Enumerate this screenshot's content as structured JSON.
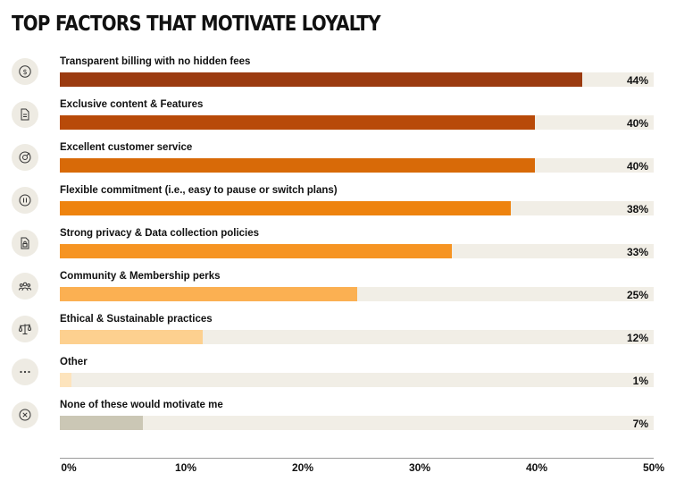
{
  "chart_data": {
    "type": "bar",
    "orientation": "horizontal",
    "title": "TOP FACTORS THAT MOTIVATE LOYALTY",
    "xlabel": "",
    "ylabel": "",
    "xlim": [
      0,
      50
    ],
    "ticks": [
      "0%",
      "10%",
      "20%",
      "30%",
      "40%",
      "50%"
    ],
    "grid": false,
    "categories": [
      "Transparent billing with no hidden fees",
      "Exclusive content & Features",
      "Excellent customer service",
      "Flexible commitment (i.e., easy to pause or switch plans)",
      "Strong privacy & Data collection policies",
      "Community & Membership perks",
      "Ethical & Sustainable practices",
      "Other",
      "None of these would motivate me"
    ],
    "values": [
      44,
      40,
      40,
      38,
      33,
      25,
      12,
      1,
      7
    ],
    "value_labels": [
      "44%",
      "40%",
      "40%",
      "38%",
      "33%",
      "25%",
      "12%",
      "1%",
      "7%"
    ],
    "bar_colors": [
      "#9b3b10",
      "#b84a09",
      "#d86a08",
      "#ee830e",
      "#f69422",
      "#fbb052",
      "#fdd08f",
      "#fde4bd",
      "#cbc7b5"
    ],
    "icons": [
      "dollar-icon",
      "document-icon",
      "support-icon",
      "pause-icon",
      "lock-doc-icon",
      "people-icon",
      "scale-icon",
      "more-icon",
      "x-icon"
    ],
    "track_color": "#f1eee6"
  }
}
